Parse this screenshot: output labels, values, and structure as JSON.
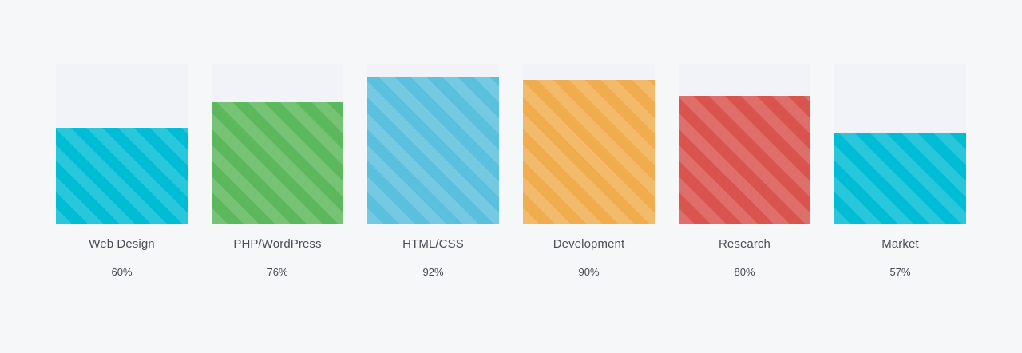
{
  "chart_data": {
    "type": "bar",
    "categories": [
      "Web Design",
      "PHP/WordPress",
      "HTML/CSS",
      "Development",
      "Research",
      "Market"
    ],
    "values": [
      60,
      76,
      92,
      90,
      80,
      57
    ],
    "value_labels": [
      "60%",
      "76%",
      "92%",
      "90%",
      "80%",
      "57%"
    ],
    "colors": [
      "#00bcd4",
      "#5cb85c",
      "#5bc0de",
      "#f0ad4e",
      "#d9534f",
      "#00bcd4"
    ],
    "ylim": [
      0,
      100
    ],
    "grid": false,
    "pattern": "diagonal-stripes"
  }
}
